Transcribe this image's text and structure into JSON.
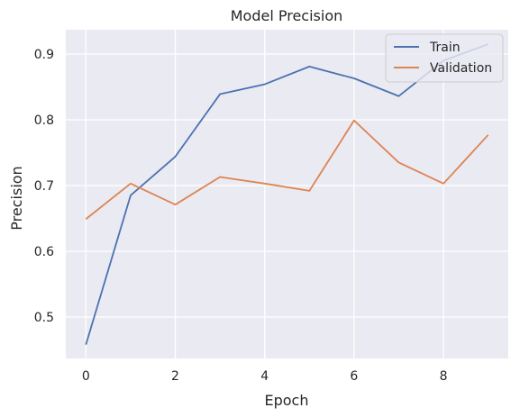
{
  "chart_data": {
    "type": "line",
    "title": "Model Precision",
    "xlabel": "Epoch",
    "ylabel": "Precision",
    "x": [
      0,
      1,
      2,
      3,
      4,
      5,
      6,
      7,
      8,
      9
    ],
    "xlim": [
      -0.45,
      9.45
    ],
    "ylim": [
      0.437,
      0.937
    ],
    "xticks": [
      0,
      2,
      4,
      6,
      8
    ],
    "yticks": [
      0.5,
      0.6,
      0.7,
      0.8,
      0.9
    ],
    "grid": true,
    "legend_position": "top-right",
    "background_color": "#eaeaf2",
    "grid_color": "#ffffff",
    "series": [
      {
        "name": "Train",
        "color": "#4c72b0",
        "values": [
          0.458,
          0.685,
          0.744,
          0.839,
          0.854,
          0.881,
          0.863,
          0.836,
          0.89,
          0.915
        ]
      },
      {
        "name": "Validation",
        "color": "#dd8452",
        "values": [
          0.649,
          0.703,
          0.671,
          0.713,
          0.703,
          0.692,
          0.799,
          0.735,
          0.703,
          0.777
        ]
      }
    ]
  }
}
